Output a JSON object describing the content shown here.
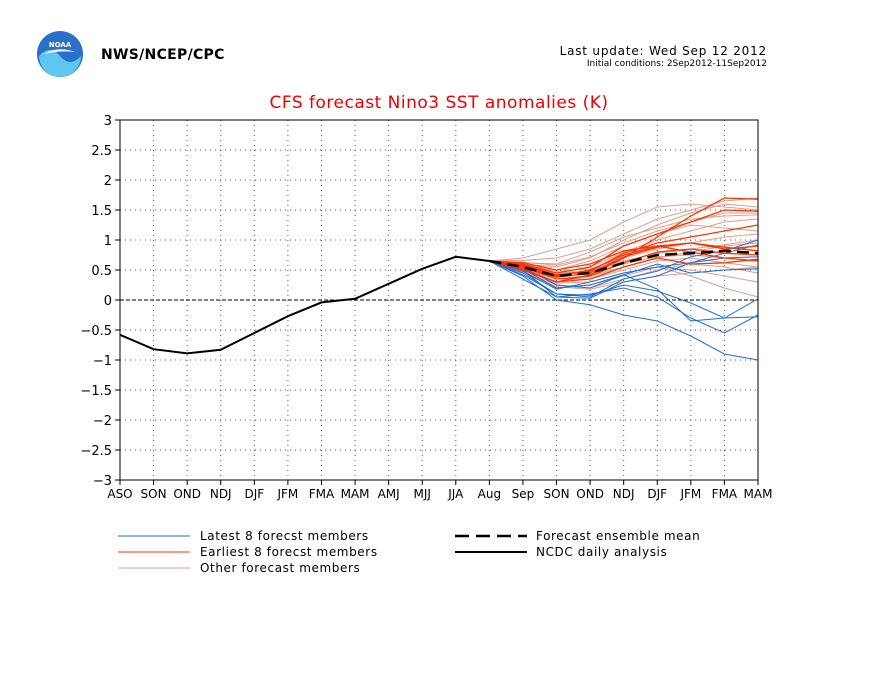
{
  "header": {
    "org": "NWS/NCEP/CPC",
    "last_update": "Last update: Wed Sep 12 2012",
    "initial_conditions": "Initial conditions: 2Sep2012-11Sep2012"
  },
  "logo": {
    "text": "NOAA",
    "colors": {
      "outer": "#2a6fc9",
      "inner": "#5fc7ef",
      "bird": "#ffffff"
    }
  },
  "chart_data": {
    "type": "line",
    "title": "CFS forecast Nino3 SST anomalies (K)",
    "xlabel": "",
    "ylabel": "",
    "categories": [
      "ASO",
      "SON",
      "OND",
      "NDJ",
      "DJF",
      "JFM",
      "FMA",
      "MAM",
      "AMJ",
      "MJJ",
      "JJA",
      "Aug",
      "Sep",
      "SON",
      "OND",
      "NDJ",
      "DJF",
      "JFM",
      "FMA",
      "MAM"
    ],
    "ylim": [
      -3,
      3
    ],
    "yticks": [
      "3",
      "2.5",
      "2",
      "1.5",
      "1",
      "0.5",
      "0",
      "−0.5",
      "−1",
      "−1.5",
      "−2",
      "−2.5",
      "−3"
    ],
    "grid": true,
    "legend_position": "bottom",
    "colors": {
      "latest": "#1f6fd1",
      "earliest": "#ff3300",
      "other": "#d9a08f",
      "mean": "#000000",
      "analysis": "#000000",
      "title": "#ee0000"
    },
    "legend": {
      "latest": "Latest 8 forecst members",
      "earliest": "Earliest 8 forecst members",
      "other": "Other forecast members",
      "mean": "Forecast ensemble mean",
      "analysis": "NCDC daily analysis"
    },
    "analysis": {
      "name": "NCDC daily analysis",
      "x_index_start": 0,
      "values": [
        -0.58,
        -0.82,
        -0.89,
        -0.83,
        -0.55,
        -0.27,
        -0.04,
        0.02,
        0.27,
        0.52,
        0.72,
        0.65
      ]
    },
    "forecast_x_index_start": 11,
    "ensemble_mean": {
      "name": "Forecast ensemble mean",
      "values": [
        0.65,
        0.55,
        0.4,
        0.45,
        0.62,
        0.75,
        0.78,
        0.82,
        0.78
      ]
    },
    "members": {
      "latest": [
        [
          0.65,
          0.5,
          0.05,
          0.03,
          0.3,
          0.4,
          0.62,
          0.78,
          0.92
        ],
        [
          0.65,
          0.45,
          0.1,
          0.05,
          0.35,
          0.48,
          0.72,
          0.82,
          1.0
        ],
        [
          0.65,
          0.35,
          0.05,
          0.1,
          0.2,
          0.05,
          -0.3,
          -0.55,
          -0.25
        ],
        [
          0.65,
          0.4,
          0.0,
          -0.08,
          -0.25,
          -0.35,
          -0.6,
          -0.9,
          -1.0
        ],
        [
          0.65,
          0.42,
          0.1,
          0.08,
          0.25,
          0.15,
          -0.05,
          -0.3,
          -0.28
        ],
        [
          0.65,
          0.55,
          0.25,
          0.2,
          0.42,
          0.6,
          0.45,
          0.5,
          0.52
        ],
        [
          0.65,
          0.52,
          0.2,
          0.25,
          0.42,
          0.18,
          -0.35,
          -0.3,
          0.02
        ],
        [
          0.65,
          0.48,
          0.18,
          0.3,
          0.45,
          0.55,
          0.62,
          0.7,
          0.72
        ]
      ],
      "earliest": [
        [
          0.65,
          0.5,
          0.3,
          0.42,
          0.7,
          1.05,
          1.4,
          1.7,
          1.68
        ],
        [
          0.65,
          0.58,
          0.4,
          0.5,
          0.75,
          0.9,
          0.95,
          0.88,
          0.82
        ],
        [
          0.65,
          0.6,
          0.45,
          0.55,
          0.9,
          1.1,
          1.3,
          1.5,
          1.48
        ],
        [
          0.65,
          0.55,
          0.35,
          0.4,
          0.62,
          0.8,
          0.85,
          0.78,
          0.75
        ],
        [
          0.65,
          0.62,
          0.5,
          0.6,
          0.82,
          0.9,
          0.8,
          0.7,
          0.65
        ],
        [
          0.65,
          0.52,
          0.3,
          0.35,
          0.55,
          0.7,
          0.6,
          0.62,
          0.68
        ],
        [
          0.65,
          0.58,
          0.42,
          0.48,
          0.78,
          0.95,
          1.05,
          1.15,
          1.25
        ],
        [
          0.65,
          0.56,
          0.38,
          0.45,
          0.72,
          0.88,
          0.95,
          0.85,
          0.9
        ]
      ],
      "other": [
        [
          0.65,
          0.7,
          0.85,
          1.0,
          1.3,
          1.55,
          1.6,
          1.55,
          1.5
        ],
        [
          0.65,
          0.6,
          0.55,
          0.7,
          1.0,
          1.25,
          1.45,
          1.6,
          1.55
        ],
        [
          0.65,
          0.5,
          0.3,
          0.4,
          0.55,
          0.7,
          0.8,
          0.9,
          0.95
        ],
        [
          0.65,
          0.48,
          0.25,
          0.2,
          0.35,
          0.5,
          0.6,
          0.55,
          0.45
        ],
        [
          0.65,
          0.62,
          0.6,
          0.8,
          1.05,
          1.2,
          1.35,
          1.4,
          1.42
        ],
        [
          0.65,
          0.55,
          0.45,
          0.55,
          0.8,
          1.0,
          1.15,
          1.3,
          1.35
        ],
        [
          0.65,
          0.58,
          0.5,
          0.65,
          0.9,
          1.1,
          1.25,
          1.2,
          1.15
        ],
        [
          0.65,
          0.52,
          0.35,
          0.35,
          0.5,
          0.65,
          0.7,
          0.62,
          0.55
        ],
        [
          0.65,
          0.45,
          0.2,
          0.25,
          0.4,
          0.55,
          0.5,
          0.4,
          0.3
        ],
        [
          0.65,
          0.6,
          0.48,
          0.52,
          0.7,
          0.85,
          0.95,
          1.05,
          1.1
        ],
        [
          0.65,
          0.66,
          0.7,
          0.85,
          1.1,
          1.35,
          1.5,
          1.65,
          1.7
        ],
        [
          0.65,
          0.5,
          0.28,
          0.3,
          0.45,
          0.55,
          0.4,
          0.2,
          0.05
        ],
        [
          0.65,
          0.54,
          0.4,
          0.5,
          0.65,
          0.78,
          0.85,
          0.92,
          1.0
        ],
        [
          0.65,
          0.57,
          0.45,
          0.48,
          0.6,
          0.72,
          0.75,
          0.7,
          0.65
        ],
        [
          0.65,
          0.47,
          0.22,
          0.18,
          0.3,
          0.4,
          0.45,
          0.5,
          0.55
        ],
        [
          0.65,
          0.63,
          0.58,
          0.72,
          0.95,
          1.15,
          1.3,
          1.45,
          1.45
        ]
      ]
    }
  }
}
